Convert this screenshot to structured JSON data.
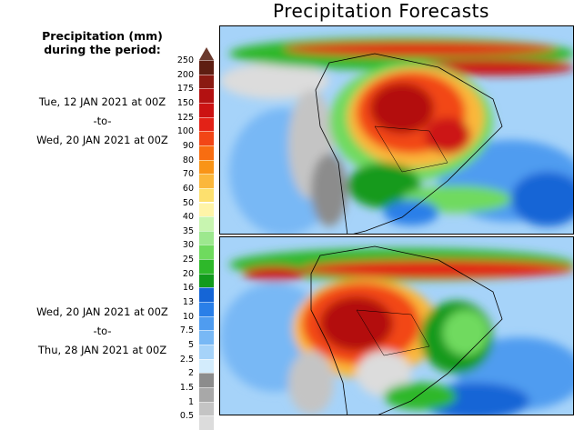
{
  "title": "Precipitation Forecasts",
  "legend": {
    "title_line1": "Precipitation (mm)",
    "title_line2": "during the period:",
    "levels": [
      "250",
      "200",
      "175",
      "150",
      "125",
      "100",
      "90",
      "80",
      "70",
      "60",
      "50",
      "40",
      "35",
      "30",
      "25",
      "20",
      "16",
      "13",
      "10",
      "7.5",
      "5",
      "2.5",
      "2",
      "1.5",
      "1",
      "0.5"
    ],
    "colors": [
      "#5e1e12",
      "#8b1a12",
      "#b31111",
      "#cc1212",
      "#e32217",
      "#f24616",
      "#f86d11",
      "#f99417",
      "#fbb73b",
      "#fde06e",
      "#fff4a8",
      "#c8f5b0",
      "#9de88e",
      "#6fda5e",
      "#2eb82a",
      "#129a1c",
      "#1565d6",
      "#2a7fe8",
      "#4f9cf0",
      "#78b8f5",
      "#a6d3f9",
      "#d3ecfc",
      "#8c8c8c",
      "#a8a8a8",
      "#c4c4c4",
      "#dcdcdc"
    ]
  },
  "periods": [
    {
      "start": "Tue, 12 JAN 2021 at 00Z",
      "sep": "-to-",
      "end": "Wed, 20 JAN 2021 at 00Z"
    },
    {
      "start": "Wed, 20 JAN 2021 at 00Z",
      "sep": "-to-",
      "end": "Thu, 28 JAN 2021 at 00Z"
    }
  ],
  "maps": [
    {
      "label": "Forecast map period 1"
    },
    {
      "label": "Forecast map period 2"
    }
  ]
}
